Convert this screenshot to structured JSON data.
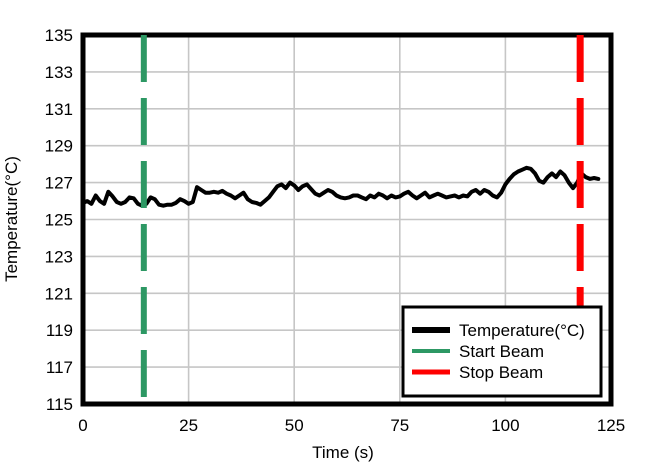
{
  "figure": {
    "background": "#ffffff",
    "frame_color": "#000000"
  },
  "chart_data": {
    "type": "line",
    "title": "",
    "xlabel": "Time (s)",
    "ylabel": "Temperature(°C)",
    "xlim": [
      0,
      125
    ],
    "ylim": [
      115,
      135
    ],
    "xticks": [
      0,
      25,
      50,
      75,
      100,
      125
    ],
    "yticks": [
      115,
      117,
      119,
      121,
      123,
      125,
      127,
      129,
      131,
      133,
      135
    ],
    "grid": true,
    "grid_color": "#c6c6c6",
    "series": [
      {
        "name": "Temperature(°C)",
        "color": "#000000",
        "width": 4,
        "x": [
          0,
          1,
          2,
          3,
          4,
          5,
          6,
          7,
          8,
          9,
          10,
          11,
          12,
          13,
          14,
          15,
          16,
          17,
          18,
          19,
          20,
          21,
          22,
          23,
          24,
          25,
          26,
          27,
          28,
          29,
          30,
          31,
          32,
          33,
          34,
          35,
          36,
          37,
          38,
          39,
          40,
          41,
          42,
          43,
          44,
          45,
          46,
          47,
          48,
          49,
          50,
          51,
          52,
          53,
          54,
          55,
          56,
          57,
          58,
          59,
          60,
          61,
          62,
          63,
          64,
          65,
          66,
          67,
          68,
          69,
          70,
          71,
          72,
          73,
          74,
          75,
          76,
          77,
          78,
          79,
          80,
          81,
          82,
          83,
          84,
          85,
          86,
          87,
          88,
          89,
          90,
          91,
          92,
          93,
          94,
          95,
          96,
          97,
          98,
          99,
          100,
          101,
          102,
          103,
          104,
          105,
          106,
          107,
          108,
          109,
          110,
          111,
          112,
          113,
          114,
          115,
          116,
          117,
          118,
          119,
          120,
          121,
          122
        ],
        "values": [
          125.9,
          126.0,
          125.85,
          126.3,
          126.0,
          125.85,
          126.5,
          126.25,
          125.95,
          125.85,
          125.95,
          126.2,
          126.15,
          125.85,
          125.75,
          125.85,
          126.2,
          126.1,
          125.8,
          125.75,
          125.8,
          125.8,
          125.9,
          126.1,
          126.0,
          125.85,
          125.95,
          126.75,
          126.6,
          126.45,
          126.45,
          126.5,
          126.45,
          126.55,
          126.4,
          126.3,
          126.15,
          126.3,
          126.45,
          126.1,
          125.95,
          125.9,
          125.8,
          126.0,
          126.2,
          126.5,
          126.8,
          126.9,
          126.7,
          127.0,
          126.85,
          126.6,
          126.8,
          126.9,
          126.65,
          126.4,
          126.3,
          126.45,
          126.6,
          126.5,
          126.3,
          126.2,
          126.15,
          126.2,
          126.3,
          126.3,
          126.2,
          126.1,
          126.3,
          126.2,
          126.4,
          126.3,
          126.15,
          126.3,
          126.2,
          126.25,
          126.4,
          126.5,
          126.3,
          126.15,
          126.3,
          126.45,
          126.2,
          126.3,
          126.4,
          126.3,
          126.2,
          126.25,
          126.3,
          126.2,
          126.3,
          126.25,
          126.5,
          126.6,
          126.4,
          126.6,
          126.5,
          126.3,
          126.2,
          126.45,
          126.9,
          127.2,
          127.45,
          127.6,
          127.7,
          127.8,
          127.75,
          127.5,
          127.1,
          127.0,
          127.3,
          127.5,
          127.3,
          127.6,
          127.4,
          127.0,
          126.7,
          127.0,
          127.5,
          127.3,
          127.2,
          127.25,
          127.2
        ]
      }
    ],
    "vlines": [
      {
        "name": "Start Beam",
        "x": 14.4,
        "color": "#2d9864",
        "width": 6,
        "dash": "47 16"
      },
      {
        "name": "Stop Beam",
        "x": 117.7,
        "color": "#fe0000",
        "width": 7,
        "dash": "47 16"
      }
    ],
    "legend": {
      "position": "lower right",
      "entries": [
        {
          "label": "Temperature(°C)",
          "color": "#000000",
          "swatch_width": 6
        },
        {
          "label": "Start Beam",
          "color": "#2d9864",
          "swatch_width": 4
        },
        {
          "label": "Stop Beam",
          "color": "#fe0000",
          "swatch_width": 5
        }
      ]
    }
  }
}
